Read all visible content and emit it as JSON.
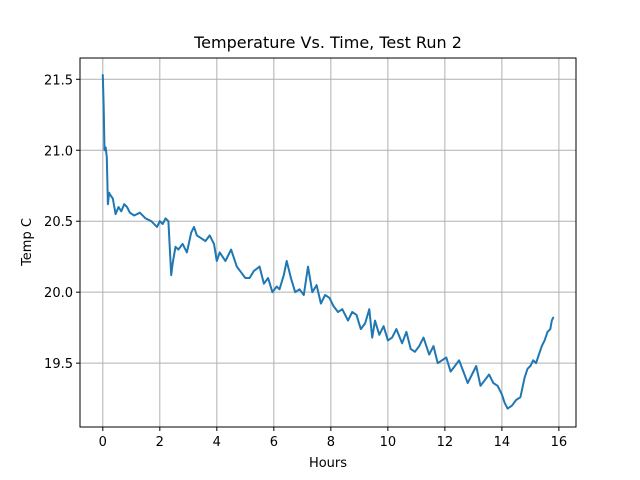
{
  "chart_data": {
    "type": "line",
    "title": "Temperature Vs. Time, Test Run 2",
    "xlabel": "Hours",
    "ylabel": "Temp C",
    "xlim": [
      -0.8,
      16.6
    ],
    "ylim": [
      19.05,
      21.65
    ],
    "xticks": [
      0,
      2,
      4,
      6,
      8,
      10,
      12,
      14,
      16
    ],
    "xtick_labels": [
      "0",
      "2",
      "4",
      "6",
      "8",
      "10",
      "12",
      "14",
      "16"
    ],
    "yticks": [
      19.5,
      20.0,
      20.5,
      21.0,
      21.5
    ],
    "ytick_labels": [
      "19.5",
      "20.0",
      "20.5",
      "21.0",
      "21.5"
    ],
    "grid": true,
    "line_color": "#1f77b4",
    "series": [
      {
        "x": [
          0.0,
          0.03,
          0.06,
          0.1,
          0.14,
          0.18,
          0.22,
          0.28,
          0.35,
          0.45,
          0.55,
          0.65,
          0.75,
          0.85,
          0.95,
          1.1,
          1.3,
          1.5,
          1.7,
          1.9,
          2.0,
          2.1,
          2.2,
          2.3,
          2.4,
          2.45,
          2.55,
          2.65,
          2.8,
          2.95,
          3.1,
          3.2,
          3.3,
          3.45,
          3.6,
          3.75,
          3.9,
          4.0,
          4.1,
          4.3,
          4.5,
          4.7,
          4.85,
          5.0,
          5.15,
          5.3,
          5.5,
          5.65,
          5.8,
          5.95,
          6.1,
          6.2,
          6.35,
          6.45,
          6.6,
          6.75,
          6.9,
          7.05,
          7.2,
          7.35,
          7.5,
          7.65,
          7.8,
          7.95,
          8.1,
          8.25,
          8.4,
          8.6,
          8.75,
          8.9,
          9.05,
          9.2,
          9.35,
          9.45,
          9.55,
          9.7,
          9.85,
          10.0,
          10.15,
          10.3,
          10.5,
          10.65,
          10.8,
          10.95,
          11.1,
          11.25,
          11.45,
          11.6,
          11.75,
          11.9,
          12.05,
          12.2,
          12.35,
          12.5,
          12.65,
          12.8,
          12.95,
          13.1,
          13.25,
          13.4,
          13.55,
          13.7,
          13.85,
          14.0,
          14.1,
          14.2,
          14.35,
          14.5,
          14.65,
          14.8,
          14.9,
          15.0,
          15.1,
          15.2,
          15.3,
          15.4,
          15.5,
          15.6,
          15.7,
          15.75,
          15.8
        ],
        "y": [
          21.53,
          21.3,
          21.0,
          21.02,
          20.95,
          20.62,
          20.7,
          20.68,
          20.66,
          20.55,
          20.6,
          20.57,
          20.62,
          20.6,
          20.56,
          20.54,
          20.56,
          20.52,
          20.5,
          20.46,
          20.5,
          20.48,
          20.52,
          20.5,
          20.12,
          20.2,
          20.32,
          20.3,
          20.34,
          20.28,
          20.42,
          20.46,
          20.4,
          20.38,
          20.36,
          20.4,
          20.34,
          20.22,
          20.28,
          20.22,
          20.3,
          20.18,
          20.14,
          20.1,
          20.1,
          20.15,
          20.18,
          20.06,
          20.1,
          20.0,
          20.04,
          20.02,
          20.12,
          20.22,
          20.1,
          20.0,
          20.02,
          19.98,
          20.18,
          20.0,
          20.05,
          19.92,
          19.98,
          19.96,
          19.9,
          19.86,
          19.88,
          19.8,
          19.86,
          19.84,
          19.74,
          19.78,
          19.88,
          19.68,
          19.8,
          19.7,
          19.76,
          19.66,
          19.68,
          19.74,
          19.64,
          19.72,
          19.6,
          19.58,
          19.62,
          19.68,
          19.56,
          19.62,
          19.5,
          19.52,
          19.54,
          19.44,
          19.48,
          19.52,
          19.44,
          19.36,
          19.42,
          19.48,
          19.34,
          19.38,
          19.42,
          19.36,
          19.34,
          19.28,
          19.22,
          19.18,
          19.2,
          19.24,
          19.26,
          19.4,
          19.46,
          19.48,
          19.52,
          19.5,
          19.56,
          19.62,
          19.66,
          19.72,
          19.74,
          19.8,
          19.82
        ]
      }
    ]
  }
}
